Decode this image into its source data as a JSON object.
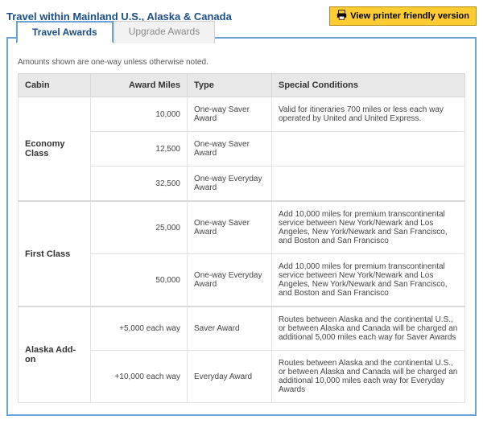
{
  "header": {
    "title": "Travel within Mainland U.S., Alaska & Canada",
    "print_label": "View printer friendly version"
  },
  "tabs": {
    "active": "Travel Awards",
    "inactive": "Upgrade Awards"
  },
  "note": "Amounts shown are one-way unless otherwise noted.",
  "columns": {
    "cabin": "Cabin",
    "miles": "Award Miles",
    "type": "Type",
    "cond": "Special Conditions"
  },
  "groups": [
    {
      "cabin": "Economy Class",
      "rows": [
        {
          "miles": "10,000",
          "type": "One-way Saver Award",
          "cond": "Valid for itineraries 700 miles or less each way operated by United and United Express."
        },
        {
          "miles": "12,500",
          "type": "One-way Saver Award",
          "cond": ""
        },
        {
          "miles": "32,500",
          "type": "One-way Everyday Award",
          "cond": ""
        }
      ]
    },
    {
      "cabin": "First Class",
      "rows": [
        {
          "miles": "25,000",
          "type": "One-way Saver Award",
          "cond": "Add 10,000 miles for premium transcontinental service between New York/Newark and Los Angeles, New York/Newark and San Francisco, and Boston and San Francisco"
        },
        {
          "miles": "50,000",
          "type": "One-way Everyday Award",
          "cond": "Add 10,000 miles for premium transcontinental service between New York/Newark and Los Angeles, New York/Newark and San Francisco, and Boston and San Francisco"
        }
      ]
    },
    {
      "cabin": "Alaska Add-on",
      "rows": [
        {
          "miles": "+5,000 each way",
          "type": "Saver Award",
          "cond": "Routes between Alaska and the continental U.S., or between Alaska and Canada will be charged an additional 5,000 miles each way for Saver Awards"
        },
        {
          "miles": "+10,000 each way",
          "type": "Everyday Award",
          "cond": "Routes between Alaska and the continental U.S., or between Alaska and Canada will be charged an additional 10,000 miles each way for Everyday Awards"
        }
      ]
    }
  ],
  "styling": {
    "title_color": "#1a4e8a",
    "panel_border": "#6ba3d6",
    "print_bg": "#ffcc33",
    "header_bg": "#e8e8e8",
    "cell_border": "#e2e2e2"
  }
}
